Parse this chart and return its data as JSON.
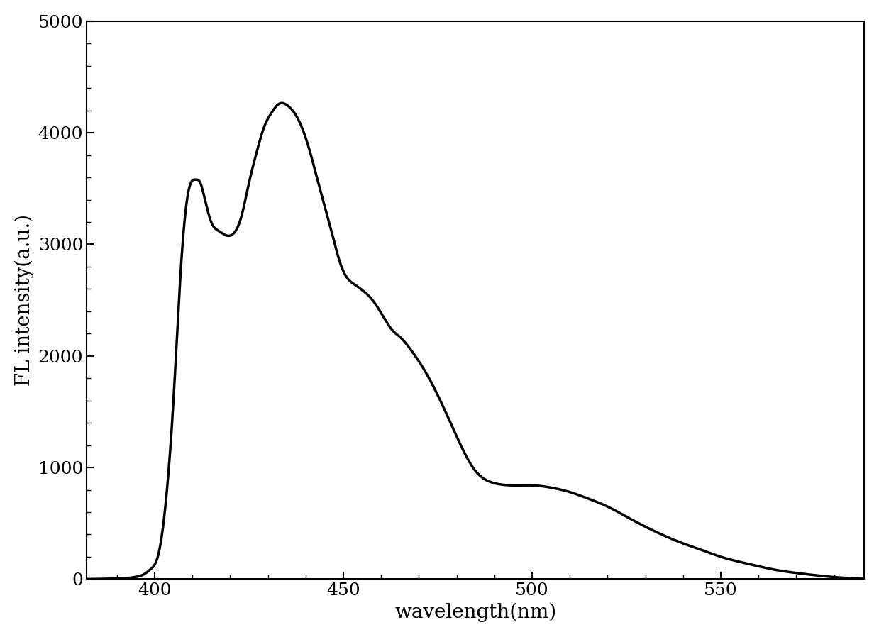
{
  "xlabel": "wavelength(nm)",
  "ylabel": "FL intensity(a.u.)",
  "xlim": [
    382,
    588
  ],
  "ylim": [
    0,
    5000
  ],
  "xticks": [
    400,
    450,
    500,
    550
  ],
  "yticks": [
    0,
    1000,
    2000,
    3000,
    4000,
    5000
  ],
  "line_color": "#000000",
  "line_width": 2.5,
  "background_color": "#ffffff",
  "xlabel_fontsize": 20,
  "ylabel_fontsize": 20,
  "tick_fontsize": 18,
  "keypoints_x": [
    382,
    386,
    390,
    393,
    395,
    397,
    399,
    401,
    403,
    405,
    407,
    409,
    411,
    412,
    413,
    415,
    417,
    419,
    421,
    423,
    425,
    427,
    429,
    431,
    433,
    435,
    437,
    439,
    441,
    443,
    445,
    447,
    449,
    451,
    453,
    455,
    457,
    459,
    461,
    463,
    465,
    468,
    471,
    475,
    480,
    485,
    490,
    495,
    500,
    505,
    510,
    515,
    520,
    525,
    530,
    535,
    540,
    545,
    550,
    555,
    560,
    565,
    570,
    575,
    580,
    585,
    588
  ],
  "keypoints_y": [
    0,
    2,
    5,
    10,
    20,
    40,
    90,
    220,
    700,
    1600,
    2800,
    3480,
    3580,
    3560,
    3450,
    3200,
    3120,
    3080,
    3100,
    3250,
    3550,
    3820,
    4050,
    4180,
    4260,
    4250,
    4180,
    4050,
    3850,
    3600,
    3350,
    3100,
    2850,
    2700,
    2640,
    2590,
    2530,
    2440,
    2330,
    2230,
    2170,
    2050,
    1900,
    1650,
    1280,
    970,
    860,
    840,
    840,
    820,
    780,
    720,
    650,
    560,
    470,
    390,
    320,
    260,
    200,
    155,
    115,
    80,
    55,
    35,
    18,
    8,
    2
  ]
}
